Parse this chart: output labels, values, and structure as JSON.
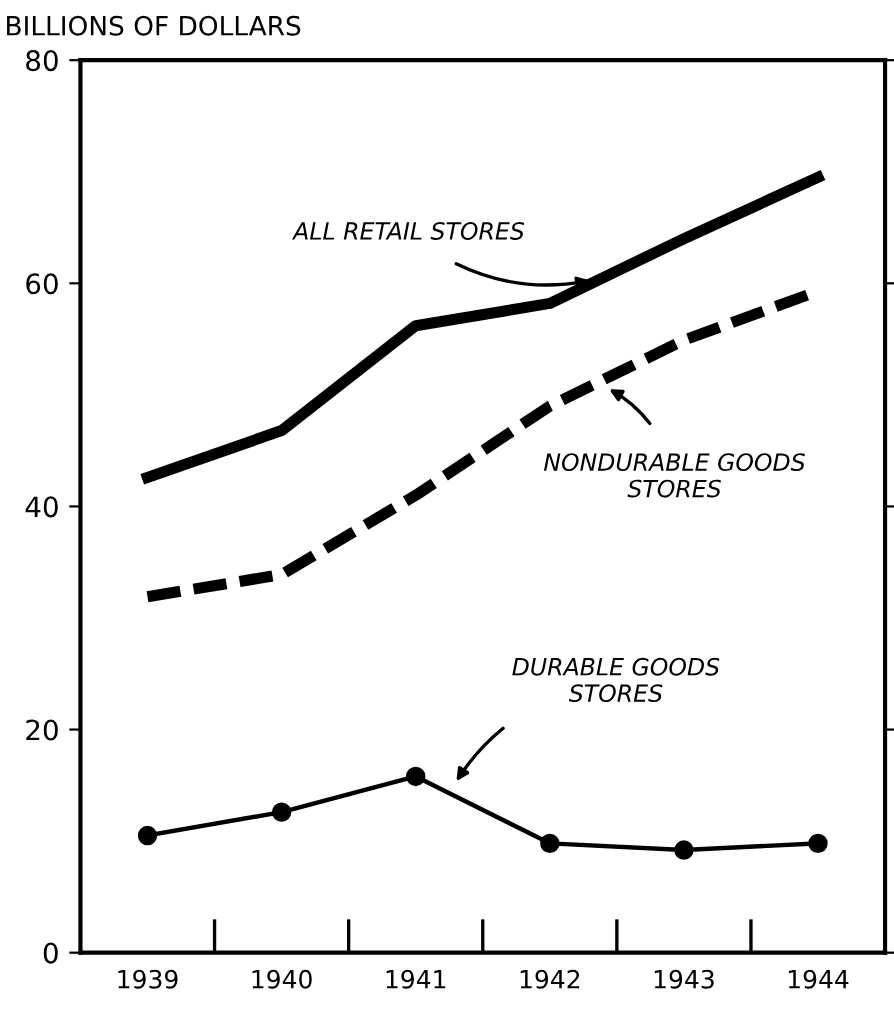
{
  "chart_data": {
    "type": "line",
    "ylabel": "BILLIONS OF DOLLARS",
    "categories": [
      "1939",
      "1940",
      "1941",
      "1942",
      "1943",
      "1944"
    ],
    "series": [
      {
        "name": "ALL RETAIL STORES",
        "color": "#000000",
        "line_style": "solid",
        "marker": "none",
        "values": [
          42.6,
          46.8,
          56.2,
          58.2,
          64.0,
          69.5
        ]
      },
      {
        "name": "NONDURABLE GOODS\nSTORES",
        "color": "#000000",
        "line_style": "dashed",
        "marker": "none",
        "values": [
          31.9,
          33.9,
          41.0,
          49.0,
          54.9,
          59.3
        ]
      },
      {
        "name": "DURABLE GOODS\nSTORES",
        "color": "#000000",
        "line_style": "solid",
        "marker": "circle",
        "values": [
          10.5,
          12.6,
          15.8,
          9.8,
          9.2,
          9.8
        ]
      }
    ],
    "ylim": [
      0,
      80
    ],
    "yticks": [
      0,
      20,
      40,
      60,
      80
    ],
    "grid": false,
    "legend": false
  }
}
